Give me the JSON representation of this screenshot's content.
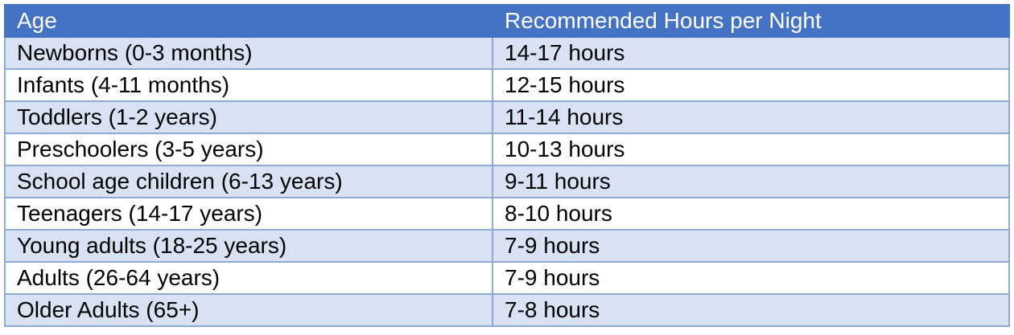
{
  "table": {
    "headers": [
      "Age",
      "Recommended Hours per Night"
    ],
    "rows": [
      [
        "Newborns (0-3 months)",
        "14-17 hours"
      ],
      [
        "Infants (4-11 months)",
        "12-15 hours"
      ],
      [
        "Toddlers (1-2 years)",
        "11-14 hours"
      ],
      [
        "Preschoolers (3-5 years)",
        "10-13 hours"
      ],
      [
        "School age children (6-13 years)",
        "9-11 hours"
      ],
      [
        "Teenagers (14-17 years)",
        "8-10 hours"
      ],
      [
        "Young adults (18-25 years)",
        "7-9 hours"
      ],
      [
        "Adults (26-64 years)",
        "7-9 hours"
      ],
      [
        "Older Adults (65+)",
        "7-8 hours"
      ]
    ]
  },
  "colors": {
    "header_bg": "#4472C4",
    "band_bg": "#D9E2F3",
    "border": "#8EAADB"
  }
}
